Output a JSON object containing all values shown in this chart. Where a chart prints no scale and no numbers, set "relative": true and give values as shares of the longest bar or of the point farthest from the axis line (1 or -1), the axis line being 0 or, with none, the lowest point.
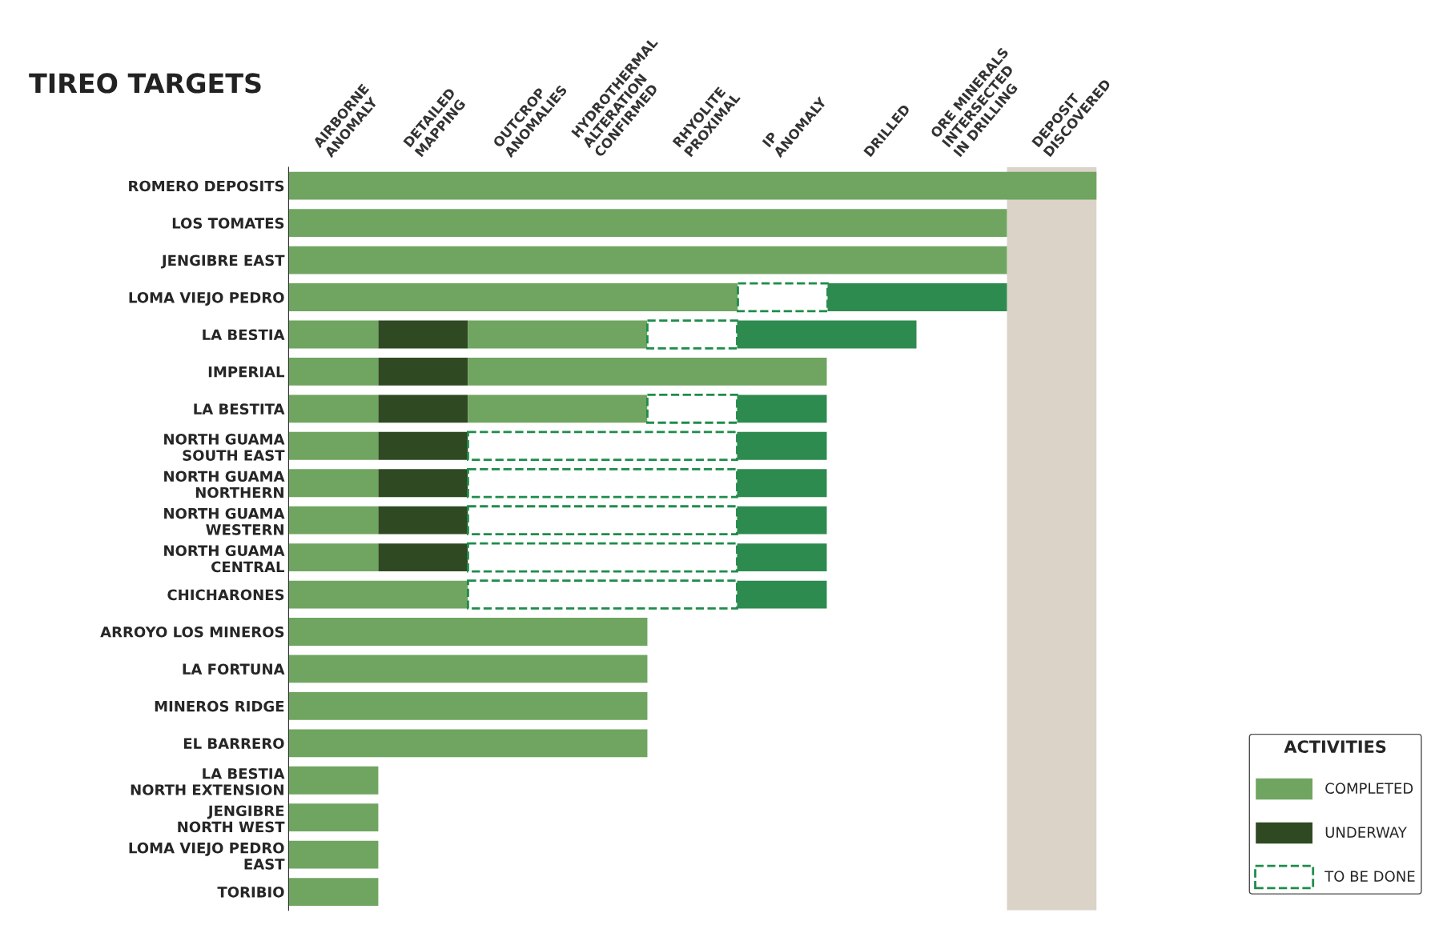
{
  "chart_data": {
    "type": "bar",
    "orientation": "horizontal",
    "stacked": true,
    "relative": true,
    "title": "TIREO TARGETS",
    "categories": [
      "ROMERO DEPOSITS",
      "LOS TOMATES",
      "JENGIBRE EAST",
      "LOMA VIEJO PEDRO",
      "LA BESTIA",
      "IMPERIAL",
      "LA BESTITA",
      "NORTH GUAMA\nSOUTH EAST",
      "NORTH GUAMA\nNORTHERN",
      "NORTH GUAMA\nWESTERN",
      "NORTH GUAMA\nCENTRAL",
      "CHICHARONES",
      "ARROYO LOS MINEROS",
      "LA FORTUNA",
      "MINEROS RIDGE",
      "EL BARRERO",
      "LA BESTIA\nNORTH EXTENSION",
      "JENGIBRE\nNORTH WEST",
      "LOMA VIEJO PEDRO\nEAST",
      "TORIBIO"
    ],
    "series": [
      {
        "name": "COMPLETED",
        "color": "#6fa560",
        "values": [
          1,
          0.889,
          0.889,
          0.556,
          0.111,
          0.111,
          0.111,
          0.111,
          0.111,
          0.111,
          0.111,
          0.222,
          0.444,
          0.444,
          0.444,
          0.444,
          0.111,
          0.111,
          0.111,
          0.111
        ]
      },
      {
        "name": "UNDERWAY",
        "color": "#2f4a22",
        "values": [
          null,
          null,
          null,
          null,
          0.111,
          0.111,
          0.111,
          0.111,
          0.111,
          0.111,
          0.111,
          null,
          null,
          null,
          null,
          null,
          null,
          null,
          null,
          null
        ]
      },
      {
        "color": "#6fa560",
        "values": [
          null,
          null,
          null,
          null,
          0.222,
          0.444,
          0.222,
          null,
          null,
          null,
          null,
          null,
          null,
          null,
          null,
          null,
          null,
          null,
          null,
          null
        ]
      },
      {
        "name": "TO BE DONE",
        "color": "#1e8c4a",
        "line_style": "dashed",
        "values": [
          null,
          null,
          null,
          0.111,
          0.111,
          null,
          0.111,
          0.333,
          0.333,
          0.333,
          0.333,
          0.333,
          null,
          null,
          null,
          null,
          null,
          null,
          null,
          null
        ]
      },
      {
        "color": "#2e8b4f",
        "values": [
          null,
          null,
          null,
          0.222,
          0.222,
          null,
          0.111,
          0.111,
          0.111,
          0.111,
          0.111,
          0.111,
          null,
          null,
          null,
          null,
          null,
          null,
          null,
          null
        ]
      }
    ],
    "annotations": [
      "AIRBORNE\nANOMALY",
      "DETAILED\nMAPPING",
      "OUTCROP\nANOMALIES",
      "HYDROTHERMAL\nALTERATION\nCONFIRMED",
      "RHYOLITE\nPROXIMAL",
      "IP\nANOMALY",
      "DRILLED",
      "ORE MINERALS\nINTERSECTED\nIN DRILLING",
      "DEPOSIT\nDISCOVERED"
    ],
    "bands": [
      {
        "axis": "x",
        "from": 0.889,
        "to": 1,
        "color": "#dcd3c8"
      }
    ],
    "legend": "bottom right",
    "legend_title": "ACTIVITIES",
    "grid": false
  }
}
